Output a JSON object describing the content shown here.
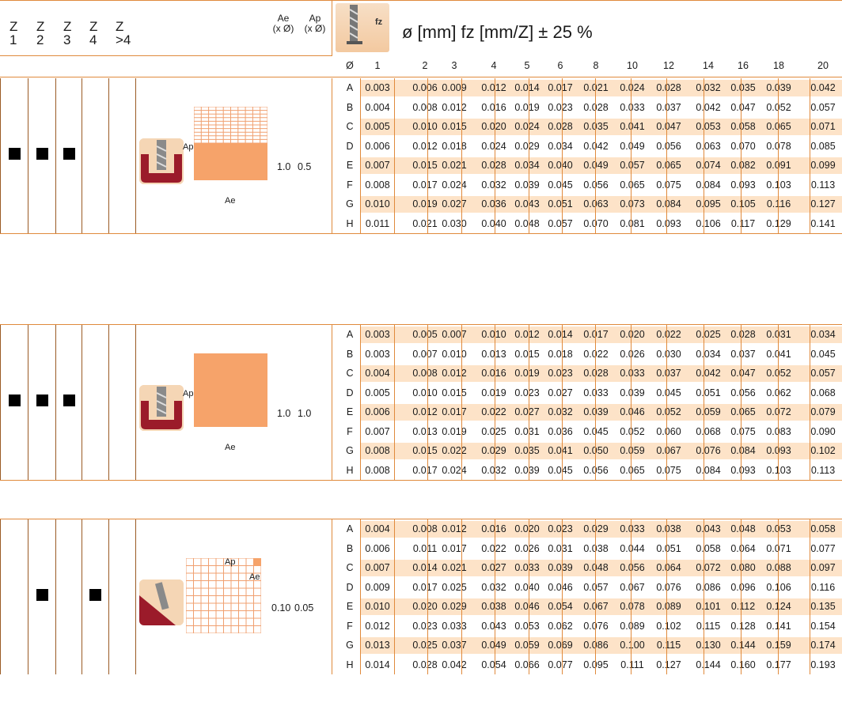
{
  "header": {
    "z_labels": [
      [
        "Z",
        "1"
      ],
      [
        "Z",
        "2"
      ],
      [
        "Z",
        "3"
      ],
      [
        "Z",
        "4"
      ],
      [
        "Z",
        ">4"
      ]
    ],
    "ae_label": "Ae",
    "ap_label": "Ap",
    "x_dia": "(x Ø)",
    "title": "ø [mm]  fz [mm/Z] ± 25 %",
    "icon_text": "fz",
    "diameter_symbol": "Ø",
    "diameters": [
      "1",
      "2",
      "3",
      "4",
      "5",
      "6",
      "8",
      "10",
      "12",
      "14",
      "16",
      "18",
      "20"
    ]
  },
  "colors": {
    "accent": "#e08a3c",
    "row_highlight": "#fde3c8",
    "shape_fill": "#f6a36a",
    "dark_red": "#8b1a1a"
  },
  "sections": [
    {
      "z_marks": [
        true,
        true,
        true,
        false,
        false
      ],
      "ae": "1.0",
      "ap": "0.5",
      "diagram": "half-grid",
      "ap_text": "Ap",
      "ae_text": "Ae",
      "rows": [
        {
          "mat": "A",
          "vals": [
            "0.003",
            "0.006",
            "0.009",
            "0.012",
            "0.014",
            "0.017",
            "0.021",
            "0.024",
            "0.028",
            "0.032",
            "0.035",
            "0.039",
            "0.042"
          ]
        },
        {
          "mat": "B",
          "vals": [
            "0.004",
            "0.008",
            "0.012",
            "0.016",
            "0.019",
            "0.023",
            "0.028",
            "0.033",
            "0.037",
            "0.042",
            "0.047",
            "0.052",
            "0.057"
          ]
        },
        {
          "mat": "C",
          "vals": [
            "0.005",
            "0.010",
            "0.015",
            "0.020",
            "0.024",
            "0.028",
            "0.035",
            "0.041",
            "0.047",
            "0.053",
            "0.058",
            "0.065",
            "0.071"
          ]
        },
        {
          "mat": "D",
          "vals": [
            "0.006",
            "0.012",
            "0.018",
            "0.024",
            "0.029",
            "0.034",
            "0.042",
            "0.049",
            "0.056",
            "0.063",
            "0.070",
            "0.078",
            "0.085"
          ]
        },
        {
          "mat": "E",
          "vals": [
            "0.007",
            "0.015",
            "0.021",
            "0.028",
            "0.034",
            "0.040",
            "0.049",
            "0.057",
            "0.065",
            "0.074",
            "0.082",
            "0.091",
            "0.099"
          ]
        },
        {
          "mat": "F",
          "vals": [
            "0.008",
            "0.017",
            "0.024",
            "0.032",
            "0.039",
            "0.045",
            "0.056",
            "0.065",
            "0.075",
            "0.084",
            "0.093",
            "0.103",
            "0.113"
          ]
        },
        {
          "mat": "G",
          "vals": [
            "0.010",
            "0.019",
            "0.027",
            "0.036",
            "0.043",
            "0.051",
            "0.063",
            "0.073",
            "0.084",
            "0.095",
            "0.105",
            "0.116",
            "0.127"
          ]
        },
        {
          "mat": "H",
          "vals": [
            "0.011",
            "0.021",
            "0.030",
            "0.040",
            "0.048",
            "0.057",
            "0.070",
            "0.081",
            "0.093",
            "0.106",
            "0.117",
            "0.129",
            "0.141"
          ]
        }
      ]
    },
    {
      "z_marks": [
        true,
        true,
        true,
        false,
        false
      ],
      "ae": "1.0",
      "ap": "1.0",
      "diagram": "full",
      "ap_text": "Ap",
      "ae_text": "Ae",
      "rows": [
        {
          "mat": "A",
          "vals": [
            "0.003",
            "0.005",
            "0.007",
            "0.010",
            "0.012",
            "0.014",
            "0.017",
            "0.020",
            "0.022",
            "0.025",
            "0.028",
            "0.031",
            "0.034"
          ]
        },
        {
          "mat": "B",
          "vals": [
            "0.003",
            "0.007",
            "0.010",
            "0.013",
            "0.015",
            "0.018",
            "0.022",
            "0.026",
            "0.030",
            "0.034",
            "0.037",
            "0.041",
            "0.045"
          ]
        },
        {
          "mat": "C",
          "vals": [
            "0.004",
            "0.008",
            "0.012",
            "0.016",
            "0.019",
            "0.023",
            "0.028",
            "0.033",
            "0.037",
            "0.042",
            "0.047",
            "0.052",
            "0.057"
          ]
        },
        {
          "mat": "D",
          "vals": [
            "0.005",
            "0.010",
            "0.015",
            "0.019",
            "0.023",
            "0.027",
            "0.033",
            "0.039",
            "0.045",
            "0.051",
            "0.056",
            "0.062",
            "0.068"
          ]
        },
        {
          "mat": "E",
          "vals": [
            "0.006",
            "0.012",
            "0.017",
            "0.022",
            "0.027",
            "0.032",
            "0.039",
            "0.046",
            "0.052",
            "0.059",
            "0.065",
            "0.072",
            "0.079"
          ]
        },
        {
          "mat": "F",
          "vals": [
            "0.007",
            "0.013",
            "0.019",
            "0.025",
            "0.031",
            "0.036",
            "0.045",
            "0.052",
            "0.060",
            "0.068",
            "0.075",
            "0.083",
            "0.090"
          ]
        },
        {
          "mat": "G",
          "vals": [
            "0.008",
            "0.015",
            "0.022",
            "0.029",
            "0.035",
            "0.041",
            "0.050",
            "0.059",
            "0.067",
            "0.076",
            "0.084",
            "0.093",
            "0.102"
          ]
        },
        {
          "mat": "H",
          "vals": [
            "0.008",
            "0.017",
            "0.024",
            "0.032",
            "0.039",
            "0.045",
            "0.056",
            "0.065",
            "0.075",
            "0.084",
            "0.093",
            "0.103",
            "0.113"
          ]
        }
      ]
    },
    {
      "z_marks": [
        false,
        true,
        false,
        true,
        false
      ],
      "ae": "0.10",
      "ap": "0.05",
      "diagram": "corner",
      "ap_text": "Ap",
      "ae_text": "Ae",
      "rows": [
        {
          "mat": "A",
          "vals": [
            "0.004",
            "0.008",
            "0.012",
            "0.016",
            "0.020",
            "0.023",
            "0.029",
            "0.033",
            "0.038",
            "0.043",
            "0.048",
            "0.053",
            "0.058"
          ]
        },
        {
          "mat": "B",
          "vals": [
            "0.006",
            "0.011",
            "0.017",
            "0.022",
            "0.026",
            "0.031",
            "0.038",
            "0.044",
            "0.051",
            "0.058",
            "0.064",
            "0.071",
            "0.077"
          ]
        },
        {
          "mat": "C",
          "vals": [
            "0.007",
            "0.014",
            "0.021",
            "0.027",
            "0.033",
            "0.039",
            "0.048",
            "0.056",
            "0.064",
            "0.072",
            "0.080",
            "0.088",
            "0.097"
          ]
        },
        {
          "mat": "D",
          "vals": [
            "0.009",
            "0.017",
            "0.025",
            "0.032",
            "0.040",
            "0.046",
            "0.057",
            "0.067",
            "0.076",
            "0.086",
            "0.096",
            "0.106",
            "0.116"
          ]
        },
        {
          "mat": "E",
          "vals": [
            "0.010",
            "0.020",
            "0.029",
            "0.038",
            "0.046",
            "0.054",
            "0.067",
            "0.078",
            "0.089",
            "0.101",
            "0.112",
            "0.124",
            "0.135"
          ]
        },
        {
          "mat": "F",
          "vals": [
            "0.012",
            "0.023",
            "0.033",
            "0.043",
            "0.053",
            "0.062",
            "0.076",
            "0.089",
            "0.102",
            "0.115",
            "0.128",
            "0.141",
            "0.154"
          ]
        },
        {
          "mat": "G",
          "vals": [
            "0.013",
            "0.025",
            "0.037",
            "0.049",
            "0.059",
            "0.069",
            "0.086",
            "0.100",
            "0.115",
            "0.130",
            "0.144",
            "0.159",
            "0.174"
          ]
        },
        {
          "mat": "H",
          "vals": [
            "0.014",
            "0.028",
            "0.042",
            "0.054",
            "0.066",
            "0.077",
            "0.095",
            "0.111",
            "0.127",
            "0.144",
            "0.160",
            "0.177",
            "0.193"
          ]
        }
      ]
    }
  ]
}
